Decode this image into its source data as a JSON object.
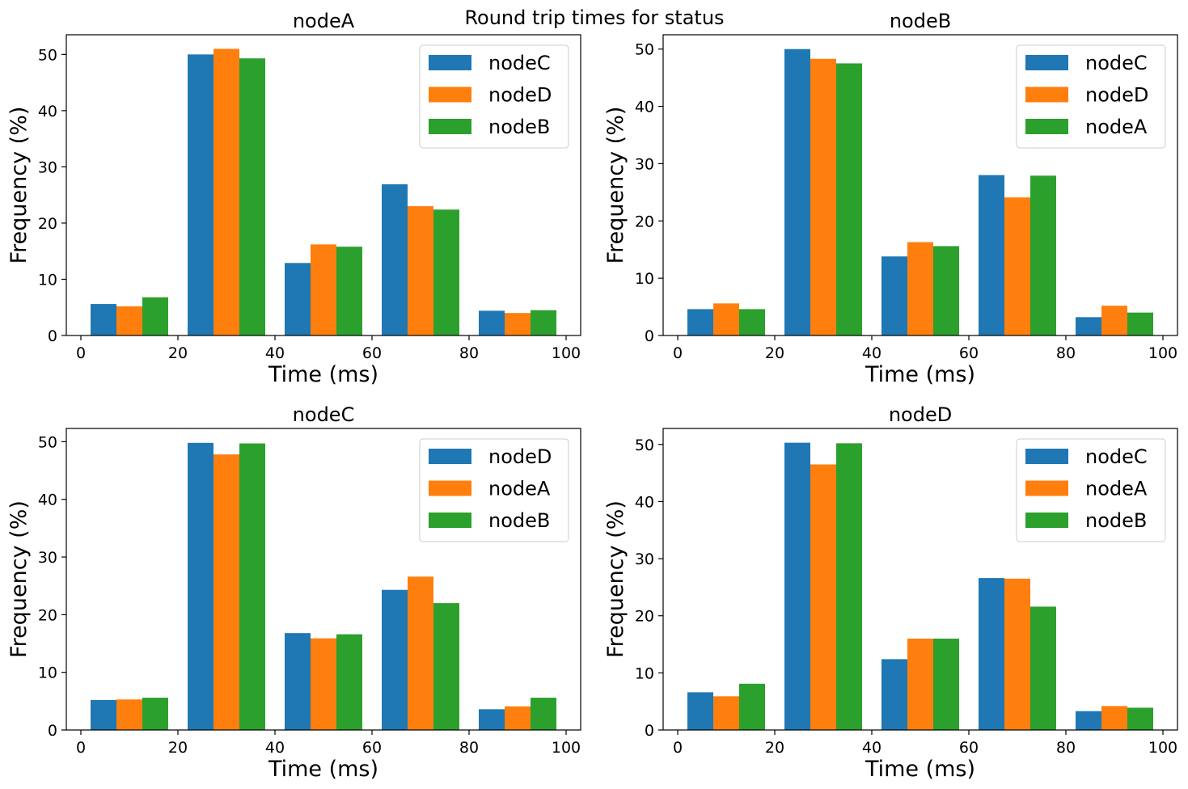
{
  "suptitle": "Round trip times for status",
  "colors": [
    "#1f77b4",
    "#ff7f0e",
    "#2ca02c"
  ],
  "chart_data": [
    {
      "type": "bar",
      "title": "nodeA",
      "xlabel": "Time (ms)",
      "ylabel": "Frequency (%)",
      "xlim": [
        -3,
        103
      ],
      "ylim": [
        0,
        53.5
      ],
      "xticks": [
        0,
        20,
        40,
        60,
        80,
        100
      ],
      "yticks": [
        0,
        10,
        20,
        30,
        40,
        50
      ],
      "bins": [
        [
          2,
          18
        ],
        [
          22,
          38
        ],
        [
          42,
          58
        ],
        [
          62,
          78
        ],
        [
          82,
          98
        ]
      ],
      "legend_loc": "upper right",
      "series": [
        {
          "name": "nodeC",
          "values": [
            5.6,
            50.0,
            12.9,
            26.9,
            4.4
          ]
        },
        {
          "name": "nodeD",
          "values": [
            5.2,
            51.0,
            16.2,
            23.0,
            4.0
          ]
        },
        {
          "name": "nodeB",
          "values": [
            6.8,
            49.3,
            15.8,
            22.4,
            4.5
          ]
        }
      ]
    },
    {
      "type": "bar",
      "title": "nodeB",
      "xlabel": "Time (ms)",
      "ylabel": "Frequency (%)",
      "xlim": [
        -3,
        103
      ],
      "ylim": [
        0,
        52.5
      ],
      "xticks": [
        0,
        20,
        40,
        60,
        80,
        100
      ],
      "yticks": [
        0,
        10,
        20,
        30,
        40,
        50
      ],
      "bins": [
        [
          2,
          18
        ],
        [
          22,
          38
        ],
        [
          42,
          58
        ],
        [
          62,
          78
        ],
        [
          82,
          98
        ]
      ],
      "legend_loc": "upper right",
      "series": [
        {
          "name": "nodeC",
          "values": [
            4.6,
            50.0,
            13.8,
            28.0,
            3.2
          ]
        },
        {
          "name": "nodeD",
          "values": [
            5.6,
            48.3,
            16.3,
            24.1,
            5.2
          ]
        },
        {
          "name": "nodeA",
          "values": [
            4.6,
            47.5,
            15.6,
            27.9,
            4.0
          ]
        }
      ]
    },
    {
      "type": "bar",
      "title": "nodeC",
      "xlabel": "Time (ms)",
      "ylabel": "Frequency (%)",
      "xlim": [
        -3,
        103
      ],
      "ylim": [
        0,
        52.3
      ],
      "xticks": [
        0,
        20,
        40,
        60,
        80,
        100
      ],
      "yticks": [
        0,
        10,
        20,
        30,
        40,
        50
      ],
      "bins": [
        [
          2,
          18
        ],
        [
          22,
          38
        ],
        [
          42,
          58
        ],
        [
          62,
          78
        ],
        [
          82,
          98
        ]
      ],
      "legend_loc": "upper right",
      "series": [
        {
          "name": "nodeD",
          "values": [
            5.2,
            49.8,
            16.8,
            24.3,
            3.6
          ]
        },
        {
          "name": "nodeA",
          "values": [
            5.3,
            47.8,
            15.9,
            26.6,
            4.1
          ]
        },
        {
          "name": "nodeB",
          "values": [
            5.6,
            49.7,
            16.6,
            22.0,
            5.6
          ]
        }
      ]
    },
    {
      "type": "bar",
      "title": "nodeD",
      "xlabel": "Time (ms)",
      "ylabel": "Frequency (%)",
      "xlim": [
        -3,
        103
      ],
      "ylim": [
        0,
        52.8
      ],
      "xticks": [
        0,
        20,
        40,
        60,
        80,
        100
      ],
      "yticks": [
        0,
        10,
        20,
        30,
        40,
        50
      ],
      "bins": [
        [
          2,
          18
        ],
        [
          22,
          38
        ],
        [
          42,
          58
        ],
        [
          62,
          78
        ],
        [
          82,
          98
        ]
      ],
      "legend_loc": "upper right",
      "series": [
        {
          "name": "nodeC",
          "values": [
            6.6,
            50.3,
            12.4,
            26.6,
            3.3
          ]
        },
        {
          "name": "nodeA",
          "values": [
            5.9,
            46.5,
            16.0,
            26.5,
            4.2
          ]
        },
        {
          "name": "nodeB",
          "values": [
            8.1,
            50.2,
            16.0,
            21.6,
            3.9
          ]
        }
      ]
    }
  ]
}
